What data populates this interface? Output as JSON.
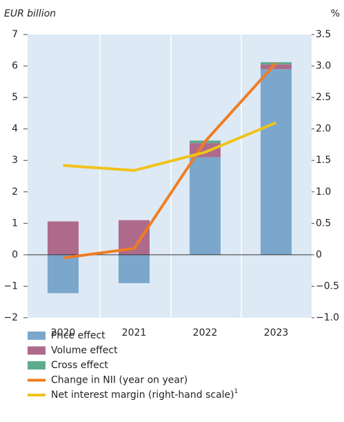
{
  "chart_data": {
    "type": "bar",
    "stacked": true,
    "y_label": "EUR billion",
    "y2_label": "%",
    "categories": [
      "2020",
      "2021",
      "2022",
      "2023"
    ],
    "series": [
      {
        "name": "Price effect",
        "color": "#7ba7cd",
        "values": [
          -1.22,
          -0.9,
          3.1,
          5.9
        ]
      },
      {
        "name": "Volume effect",
        "color": "#ae6a8b",
        "values": [
          1.06,
          1.1,
          0.45,
          0.15
        ]
      },
      {
        "name": "Cross effect",
        "color": "#5dab8c",
        "values": [
          0,
          0,
          0.08,
          0.07
        ]
      },
      {
        "name": "Change in NII (year on year)",
        "type": "line",
        "color": "#f07d22",
        "values": [
          -0.1,
          0.2,
          3.6,
          6.1
        ]
      },
      {
        "name": "Net interest margin (right-hand scale)",
        "note": "1",
        "type": "line",
        "axis": "y2",
        "color": "#f0c31b",
        "values": [
          1.42,
          1.34,
          1.63,
          2.1
        ]
      }
    ],
    "ylim": [
      -2,
      7
    ],
    "yticks": [
      {
        "value": -2,
        "label": "−2"
      },
      {
        "value": -1,
        "label": "−1"
      },
      0,
      1,
      2,
      3,
      4,
      5,
      6,
      7
    ],
    "y2lim": [
      -1,
      3.5
    ],
    "y2ticks": [
      {
        "value": -1,
        "label": "−1.0"
      },
      {
        "value": -0.5,
        "label": "−0.5"
      },
      0,
      0.5,
      {
        "value": 1,
        "label": "1.0"
      },
      1.5,
      {
        "value": 2,
        "label": "2.0"
      },
      2.5,
      {
        "value": 3,
        "label": "3.0"
      },
      3.5
    ]
  }
}
